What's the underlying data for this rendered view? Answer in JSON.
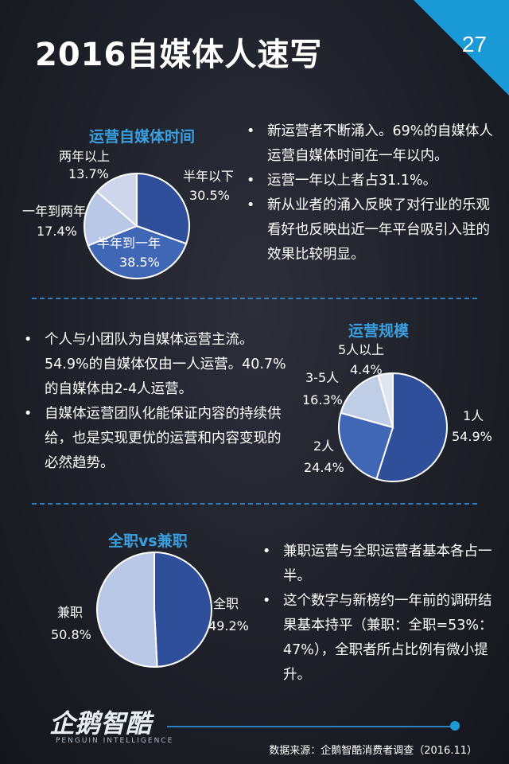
{
  "title": "2016自媒体人速写",
  "page_number": "27",
  "colors": {
    "accent": "#1a9ad6",
    "dark_blue": "#2f4f9a",
    "mid_blue": "#3f67b5",
    "light_blue": "#b9c8e6",
    "lighter_blue": "#cdd6ea"
  },
  "section1": {
    "title": "运营自媒体时间",
    "bullets": [
      "新运营者不断涌入。69%的自媒体人运营自媒体时间在一年以内。",
      "运营一年以上者占31.1%。",
      "新从业者的涌入反映了对行业的乐观看好也反映出近一年平台吸引入驻的效果比较明显。"
    ],
    "labels": [
      {
        "name": "半年以下",
        "pct": "30.5%"
      },
      {
        "name": "半年到一年",
        "pct": "38.5%"
      },
      {
        "name": "一年到两年",
        "pct": "17.4%"
      },
      {
        "name": "两年以上",
        "pct": "13.7%"
      }
    ]
  },
  "section2": {
    "title": "运营规模",
    "bullets": [
      "个人与小团队为自媒体运营主流。54.9%的自媒体仅由一人运营。40.7%的自媒体由2-4人运营。",
      "自媒体运营团队化能保证内容的持续供给，也是实现更优的运营和内容变现的必然趋势。"
    ],
    "labels": [
      {
        "name": "1人",
        "pct": "54.9%"
      },
      {
        "name": "2人",
        "pct": "24.4%"
      },
      {
        "name": "3-5人",
        "pct": "16.3%"
      },
      {
        "name": "5人以上",
        "pct": "4.4%"
      }
    ]
  },
  "section3": {
    "title": "全职vs兼职",
    "bullets": [
      "兼职运营与全职运营者基本各占一半。",
      "这个数字与新榜约一年前的调研结果基本持平（兼职：全职=53%：47%），全职者所占比例有微小提升。"
    ],
    "labels": [
      {
        "name": "全职",
        "pct": "49.2%"
      },
      {
        "name": "兼职",
        "pct": "50.8%"
      }
    ]
  },
  "footer": {
    "logo": "企鹅智酷",
    "logo_sub": "PENGUIN INTELLIGENCE",
    "source": "数据来源：企鹅智酷消费者调查（2016.11）"
  },
  "chart_data": [
    {
      "type": "pie",
      "title": "运营自媒体时间",
      "categories": [
        "半年以下",
        "半年到一年",
        "一年到两年",
        "两年以上"
      ],
      "values": [
        30.5,
        38.5,
        17.4,
        13.7
      ],
      "colors": [
        "#2f4f9a",
        "#3f67b5",
        "#b9c8e6",
        "#cdd6ea"
      ]
    },
    {
      "type": "pie",
      "title": "运营规模",
      "categories": [
        "1人",
        "2人",
        "3-5人",
        "5人以上"
      ],
      "values": [
        54.9,
        24.4,
        16.3,
        4.4
      ],
      "colors": [
        "#2f4f9a",
        "#3f67b5",
        "#c0cde7",
        "#dfe5f1"
      ]
    },
    {
      "type": "pie",
      "title": "全职vs兼职",
      "categories": [
        "全职",
        "兼职"
      ],
      "values": [
        49.2,
        50.8
      ],
      "colors": [
        "#2f4f9a",
        "#b9c8e6"
      ]
    }
  ]
}
